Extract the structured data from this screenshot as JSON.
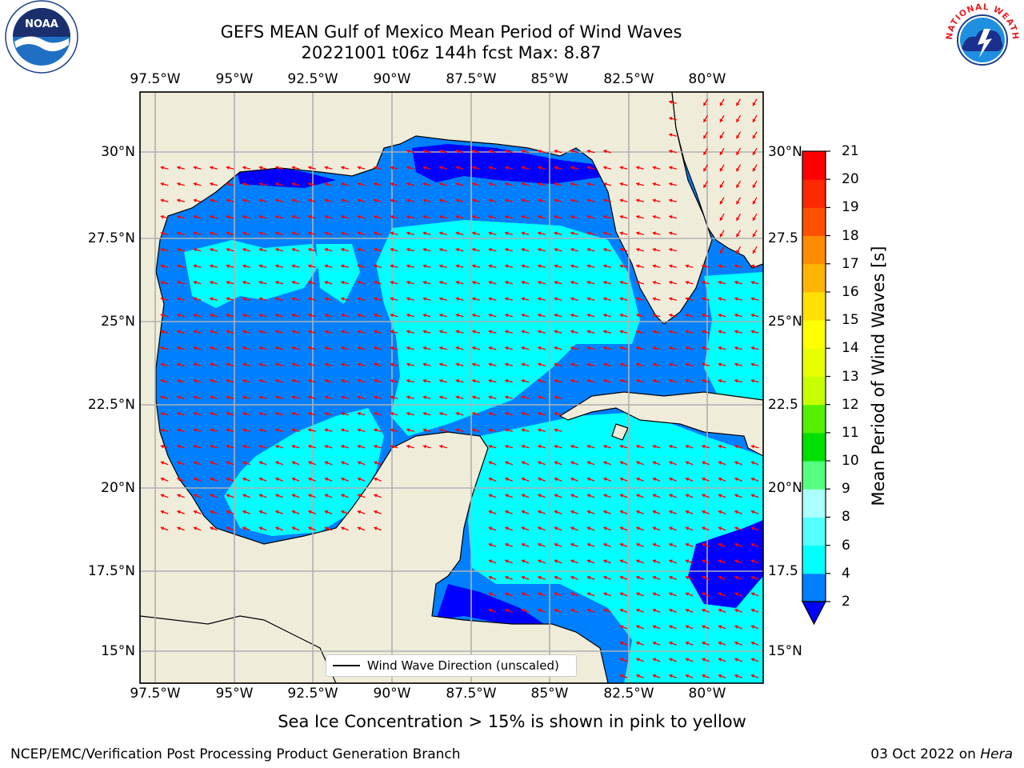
{
  "title": {
    "line1": "GEFS MEAN Gulf of Mexico Mean Period of Wind Waves",
    "line2": "20221001 t06z 144h fcst   Max: 8.87"
  },
  "map": {
    "lon_ticks_top": [
      "97.5°W",
      "95°W",
      "92.5°W",
      "90°W",
      "87.5°W",
      "85°W",
      "82.5°W",
      "80°W"
    ],
    "lon_ticks_bottom": [
      "97.5°W",
      "95°W",
      "92.5°W",
      "90°W",
      "87.5°W",
      "85°W",
      "82.5°W",
      "80°W"
    ],
    "lat_ticks_left": [
      "30°N",
      "27.5°N",
      "25°N",
      "22.5°N",
      "20°N",
      "17.5°N",
      "15°N"
    ],
    "lat_ticks_right": [
      "30°N",
      "27.5",
      "25°N",
      "22.5",
      "20°N",
      "17.5",
      "15°N"
    ],
    "legend_label": "Wind Wave Direction (unscaled)",
    "land_color": "#efecda",
    "arrow_color": "#ff0000",
    "grid": true
  },
  "colorbar": {
    "label": "Mean Period of Wind Waves [s]",
    "ticks": [
      "2",
      "4",
      "6",
      "8",
      "9",
      "10",
      "11",
      "12",
      "13",
      "14",
      "15",
      "16",
      "17",
      "18",
      "19",
      "20",
      "21"
    ],
    "colors": [
      "#0080ff",
      "#00e5ff",
      "#00ffff",
      "#55ffff",
      "#aaffff",
      "#55ff80",
      "#00e000",
      "#55f000",
      "#c8ff00",
      "#e8ff00",
      "#ffff00",
      "#ffe000",
      "#ffb400",
      "#ff8c00",
      "#ff5000",
      "#ff2800",
      "#ff0000"
    ],
    "extend_color": "#0000ff"
  },
  "note": "Sea Ice Concentration > 15% is shown in pink to yellow",
  "footer": {
    "left": "NCEP/EMC/Verification Post Processing Product Generation Branch",
    "right_date": "03 Oct 2022 on ",
    "right_host": "Hera"
  },
  "logos": {
    "noaa_text": "NOAA",
    "nws_text": "NATIONAL WEATHER SERVICE"
  }
}
